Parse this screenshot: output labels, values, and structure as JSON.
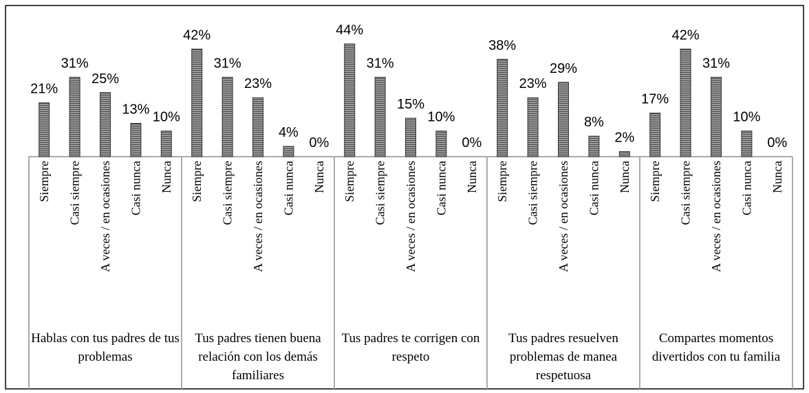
{
  "chart_data": {
    "type": "bar",
    "color": "#808080",
    "categories": [
      "Siempre",
      "Casi siempre",
      "A veces / en ocasiones",
      "Casi nunca",
      "Nunca"
    ],
    "groups": [
      {
        "name": "Hablas con tus padres de tus problemas",
        "values": [
          21,
          31,
          25,
          13,
          10
        ],
        "value_labels": [
          "21%",
          "31%",
          "25%",
          "13%",
          "10%"
        ]
      },
      {
        "name": "Tus padres tienen buena relación con los demás familiares",
        "values": [
          42,
          31,
          23,
          4,
          0
        ],
        "value_labels": [
          "42%",
          "31%",
          "23%",
          "4%",
          "0%"
        ]
      },
      {
        "name": "Tus padres te corrigen con respeto",
        "values": [
          44,
          31,
          15,
          10,
          0
        ],
        "value_labels": [
          "44%",
          "31%",
          "15%",
          "10%",
          "0%"
        ]
      },
      {
        "name": "Tus padres resuelven problemas de manea respetuosa",
        "values": [
          38,
          23,
          29,
          8,
          2
        ],
        "value_labels": [
          "38%",
          "23%",
          "29%",
          "8%",
          "2%"
        ]
      },
      {
        "name": "Compartes momentos divertidos con tu familia",
        "values": [
          17,
          42,
          31,
          10,
          0
        ],
        "value_labels": [
          "17%",
          "42%",
          "31%",
          "10%",
          "0%"
        ]
      }
    ]
  }
}
